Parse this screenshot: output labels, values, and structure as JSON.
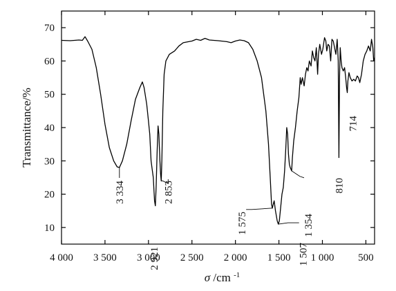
{
  "chart_data": {
    "type": "line",
    "xlabel_symbol": "σ",
    "xlabel_unit": "/cm",
    "xlabel_exp": "-1",
    "ylabel": "Transmittance/%",
    "xlim": [
      4000,
      400
    ],
    "ylim": [
      5,
      75
    ],
    "x_reversed": true,
    "grid": false,
    "x_ticks": [
      4000,
      3500,
      3000,
      2500,
      2000,
      1500,
      1000,
      500
    ],
    "x_tick_labels": [
      "4 000",
      "3 500",
      "3 000",
      "2 500",
      "2 000",
      "1 500",
      "1 000",
      "500"
    ],
    "y_ticks": [
      10,
      20,
      30,
      40,
      50,
      60,
      70
    ],
    "y_tick_labels": [
      "10",
      "20",
      "30",
      "40",
      "50",
      "60",
      "70"
    ],
    "series": [
      {
        "line_color": "#000000",
        "points": [
          [
            4000,
            66.2
          ],
          [
            3900,
            66.1
          ],
          [
            3800,
            66.3
          ],
          [
            3760,
            66.2
          ],
          [
            3730,
            67.3
          ],
          [
            3700,
            66.0
          ],
          [
            3650,
            63.5
          ],
          [
            3600,
            58.0
          ],
          [
            3550,
            50.0
          ],
          [
            3500,
            41.0
          ],
          [
            3450,
            34.0
          ],
          [
            3400,
            30.0
          ],
          [
            3360,
            28.2
          ],
          [
            3334,
            28.0
          ],
          [
            3300,
            30.0
          ],
          [
            3250,
            35.0
          ],
          [
            3200,
            42.0
          ],
          [
            3150,
            48.5
          ],
          [
            3100,
            52.0
          ],
          [
            3070,
            53.7
          ],
          [
            3050,
            52.0
          ],
          [
            3020,
            47.0
          ],
          [
            3000,
            42.0
          ],
          [
            2985,
            38.0
          ],
          [
            2970,
            30.0
          ],
          [
            2955,
            27.0
          ],
          [
            2945,
            25.0
          ],
          [
            2930,
            18.0
          ],
          [
            2921,
            16.5
          ],
          [
            2912,
            22.0
          ],
          [
            2900,
            33.0
          ],
          [
            2890,
            40.5
          ],
          [
            2880,
            38.0
          ],
          [
            2868,
            30.0
          ],
          [
            2860,
            26.0
          ],
          [
            2853,
            24.0
          ],
          [
            2846,
            30.0
          ],
          [
            2835,
            45.0
          ],
          [
            2820,
            56.0
          ],
          [
            2800,
            60.0
          ],
          [
            2760,
            62.0
          ],
          [
            2700,
            63.0
          ],
          [
            2650,
            64.5
          ],
          [
            2600,
            65.5
          ],
          [
            2500,
            66.0
          ],
          [
            2450,
            66.5
          ],
          [
            2400,
            66.2
          ],
          [
            2350,
            66.8
          ],
          [
            2300,
            66.3
          ],
          [
            2200,
            66.1
          ],
          [
            2100,
            65.8
          ],
          [
            2050,
            65.5
          ],
          [
            2000,
            66.0
          ],
          [
            1950,
            66.3
          ],
          [
            1900,
            66.1
          ],
          [
            1850,
            65.5
          ],
          [
            1800,
            63.5
          ],
          [
            1750,
            60.0
          ],
          [
            1700,
            55.0
          ],
          [
            1650,
            45.0
          ],
          [
            1620,
            35.0
          ],
          [
            1600,
            25.0
          ],
          [
            1585,
            17.0
          ],
          [
            1575,
            15.8
          ],
          [
            1565,
            17.0
          ],
          [
            1555,
            18.0
          ],
          [
            1540,
            15.0
          ],
          [
            1520,
            12.0
          ],
          [
            1507,
            11.0
          ],
          [
            1495,
            12.0
          ],
          [
            1480,
            16.0
          ],
          [
            1465,
            20.0
          ],
          [
            1450,
            22.0
          ],
          [
            1435,
            27.0
          ],
          [
            1420,
            34.0
          ],
          [
            1410,
            40.0
          ],
          [
            1400,
            38.0
          ],
          [
            1390,
            32.0
          ],
          [
            1380,
            29.0
          ],
          [
            1370,
            28.0
          ],
          [
            1354,
            27.0
          ],
          [
            1345,
            31.0
          ],
          [
            1330,
            36.0
          ],
          [
            1310,
            40.0
          ],
          [
            1290,
            45.0
          ],
          [
            1270,
            49.0
          ],
          [
            1255,
            55.0
          ],
          [
            1245,
            53.0
          ],
          [
            1230,
            55.0
          ],
          [
            1210,
            52.5
          ],
          [
            1195,
            56.0
          ],
          [
            1180,
            58.0
          ],
          [
            1165,
            57.0
          ],
          [
            1150,
            60.0
          ],
          [
            1130,
            58.5
          ],
          [
            1115,
            63.0
          ],
          [
            1100,
            61.0
          ],
          [
            1085,
            60.0
          ],
          [
            1070,
            64.0
          ],
          [
            1055,
            56.0
          ],
          [
            1045,
            62.0
          ],
          [
            1030,
            65.0
          ],
          [
            1010,
            62.0
          ],
          [
            995,
            63.5
          ],
          [
            975,
            67.0
          ],
          [
            960,
            66.0
          ],
          [
            950,
            63.0
          ],
          [
            935,
            65.0
          ],
          [
            920,
            64.5
          ],
          [
            905,
            60.0
          ],
          [
            890,
            66.5
          ],
          [
            875,
            66.0
          ],
          [
            860,
            64.0
          ],
          [
            845,
            62.0
          ],
          [
            830,
            66.5
          ],
          [
            818,
            60.0
          ],
          [
            810,
            31.0
          ],
          [
            803,
            55.0
          ],
          [
            795,
            64.0
          ],
          [
            785,
            60.0
          ],
          [
            775,
            58.0
          ],
          [
            760,
            57.0
          ],
          [
            745,
            58.0
          ],
          [
            732,
            55.0
          ],
          [
            722,
            52.0
          ],
          [
            714,
            50.5
          ],
          [
            707,
            54.0
          ],
          [
            695,
            56.5
          ],
          [
            680,
            55.0
          ],
          [
            660,
            54.0
          ],
          [
            640,
            54.5
          ],
          [
            620,
            54.0
          ],
          [
            600,
            55.5
          ],
          [
            585,
            55.0
          ],
          [
            570,
            53.5
          ],
          [
            550,
            56.0
          ],
          [
            530,
            60.0
          ],
          [
            510,
            62.0
          ],
          [
            490,
            63.0
          ],
          [
            470,
            64.5
          ],
          [
            450,
            63.0
          ],
          [
            435,
            66.5
          ],
          [
            420,
            64.0
          ],
          [
            410,
            60.0
          ],
          [
            400,
            61.0
          ]
        ]
      }
    ],
    "annotations": [
      {
        "text": "3 334",
        "x": 3334,
        "y": 28.0
      },
      {
        "text": "2 921",
        "x": 2921,
        "y": 16.5
      },
      {
        "text": "2 853",
        "x": 2853,
        "y": 24.0
      },
      {
        "text": "1 575",
        "x": 1575,
        "y": 15.8
      },
      {
        "text": "1 507",
        "x": 1507,
        "y": 11.0
      },
      {
        "text": "1 354",
        "x": 1354,
        "y": 27.0
      },
      {
        "text": "810",
        "x": 810,
        "y": 31.0
      },
      {
        "text": "714",
        "x": 714,
        "y": 50.5
      }
    ]
  }
}
